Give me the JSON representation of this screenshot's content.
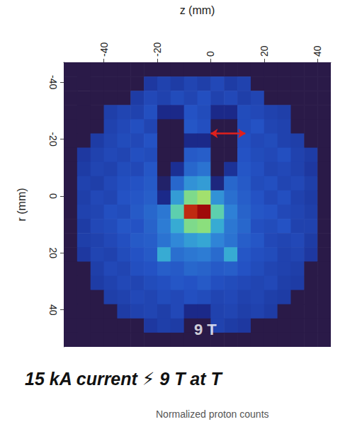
{
  "chart_data": {
    "type": "heatmap",
    "title": "15 kA current ⚡ 9 T at T",
    "colorbar_label": "Normalized proton counts",
    "x_label": "z (mm)",
    "y_label": "r (mm)",
    "x": [
      -52.5,
      -47.5,
      -42.5,
      -37.5,
      -32.5,
      -27.5,
      -22.5,
      -17.5,
      -12.5,
      -7.5,
      -2.5,
      2.5,
      7.5,
      12.5,
      17.5,
      22.5,
      27.5,
      32.5,
      37.5,
      42.5
    ],
    "y": [
      -44.5,
      -39.5,
      -34.5,
      -29.5,
      -24.5,
      -19.5,
      -14.5,
      -9.5,
      -4.5,
      0.5,
      5.5,
      10.5,
      15.5,
      20.5,
      25.5,
      30.5,
      35.5,
      40.5,
      45.5,
      50.5
    ],
    "values": [
      [
        0,
        0,
        0,
        0,
        0,
        0,
        0,
        0,
        0,
        0,
        0,
        0,
        0,
        0,
        0,
        0,
        0,
        0,
        0,
        0
      ],
      [
        0,
        0,
        0,
        0,
        0,
        0,
        0.17,
        0.2,
        0.18,
        0.21,
        0.19,
        0.22,
        0.18,
        0.2,
        0,
        0,
        0,
        0,
        0,
        0
      ],
      [
        0,
        0,
        0,
        0,
        0,
        0.18,
        0.22,
        0.2,
        0.23,
        0.21,
        0.24,
        0.2,
        0.22,
        0.19,
        0.21,
        0,
        0,
        0,
        0,
        0
      ],
      [
        0,
        0,
        0,
        0.19,
        0.21,
        0.2,
        0.24,
        0.12,
        0.12,
        0.25,
        0.23,
        0.12,
        0.12,
        0.23,
        0.22,
        0.2,
        0.19,
        0,
        0,
        0
      ],
      [
        0,
        0,
        0,
        0.2,
        0.22,
        0.24,
        0.21,
        0,
        0,
        0.26,
        0.24,
        0,
        0,
        0.23,
        0.25,
        0.21,
        0.2,
        0,
        0,
        0
      ],
      [
        0,
        0,
        0.18,
        0.21,
        0.23,
        0.22,
        0.25,
        0,
        0,
        0.12,
        0.12,
        0,
        0,
        0.24,
        0.22,
        0.23,
        0.2,
        0.19,
        0,
        0
      ],
      [
        0,
        0.17,
        0.2,
        0.22,
        0.21,
        0.24,
        0.23,
        0,
        0,
        0.27,
        0.28,
        0,
        0,
        0.25,
        0.23,
        0.22,
        0.24,
        0.2,
        0.18,
        0
      ],
      [
        0,
        0.18,
        0.21,
        0.2,
        0.23,
        0.22,
        0.26,
        0,
        0.14,
        0.3,
        0.33,
        0,
        0.15,
        0.26,
        0.24,
        0.21,
        0.22,
        0.2,
        0.17,
        0
      ],
      [
        0,
        0.2,
        0.19,
        0.22,
        0.24,
        0.25,
        0.27,
        0.06,
        0.3,
        0.4,
        0.42,
        0.1,
        0.3,
        0.27,
        0.23,
        0.24,
        0.21,
        0.22,
        0.19,
        0
      ],
      [
        0,
        0.19,
        0.22,
        0.21,
        0.25,
        0.26,
        0.28,
        0.12,
        0.42,
        0.6,
        0.65,
        0.4,
        0.32,
        0.28,
        0.25,
        0.22,
        0.24,
        0.2,
        0.18,
        0
      ],
      [
        0,
        0.2,
        0.21,
        0.24,
        0.23,
        0.27,
        0.3,
        0.34,
        0.55,
        0.95,
        1.0,
        0.55,
        0.36,
        0.29,
        0.26,
        0.25,
        0.22,
        0.21,
        0.19,
        0
      ],
      [
        0,
        0.18,
        0.22,
        0.23,
        0.26,
        0.25,
        0.29,
        0.35,
        0.45,
        0.6,
        0.62,
        0.45,
        0.34,
        0.3,
        0.24,
        0.23,
        0.25,
        0.2,
        0.2,
        0
      ],
      [
        0,
        0.19,
        0.2,
        0.22,
        0.24,
        0.27,
        0.28,
        0.33,
        0.38,
        0.42,
        0.44,
        0.37,
        0.33,
        0.28,
        0.26,
        0.22,
        0.21,
        0.22,
        0.18,
        0
      ],
      [
        0,
        0.17,
        0.21,
        0.2,
        0.23,
        0.25,
        0.27,
        0.45,
        0.32,
        0.34,
        0.35,
        0.31,
        0.45,
        0.26,
        0.24,
        0.23,
        0.2,
        0.21,
        0.17,
        0
      ],
      [
        0,
        0,
        0.19,
        0.22,
        0.21,
        0.24,
        0.25,
        0.28,
        0.27,
        0.3,
        0.29,
        0.27,
        0.28,
        0.25,
        0.23,
        0.21,
        0.2,
        0.19,
        0,
        0
      ],
      [
        0,
        0,
        0.18,
        0.2,
        0.22,
        0.21,
        0.23,
        0.24,
        0.26,
        0.25,
        0.27,
        0.24,
        0.23,
        0.22,
        0.21,
        0.22,
        0.19,
        0.18,
        0,
        0
      ],
      [
        0,
        0,
        0,
        0.19,
        0.2,
        0.22,
        0.21,
        0.23,
        0.22,
        0.24,
        0.23,
        0.21,
        0.22,
        0.2,
        0.21,
        0.19,
        0.18,
        0,
        0,
        0
      ],
      [
        0,
        0,
        0,
        0,
        0.18,
        0.2,
        0.21,
        0.19,
        0.22,
        0.12,
        0.12,
        0.2,
        0.21,
        0.19,
        0.2,
        0.18,
        0,
        0,
        0,
        0
      ],
      [
        0,
        0,
        0,
        0,
        0,
        0,
        0.17,
        0.19,
        0.18,
        0,
        0,
        0.2,
        0.18,
        0.17,
        0,
        0,
        0,
        0,
        0,
        0
      ],
      [
        0,
        0,
        0,
        0,
        0,
        0,
        0,
        0,
        0,
        0,
        0,
        0,
        0,
        0,
        0,
        0,
        0,
        0,
        0,
        0
      ]
    ],
    "xlim": [
      -55,
      45
    ],
    "ylim": [
      -47,
      53
    ],
    "xticks": [
      -40,
      -20,
      0,
      20,
      40
    ],
    "yticks": [
      -40,
      -20,
      0,
      20,
      40
    ],
    "color_range": [
      0,
      1
    ],
    "annotations": [
      {
        "text": "9 T",
        "x": -2,
        "y": 47
      }
    ],
    "arrow": {
      "x": [
        0,
        13
      ],
      "y": -22,
      "color": "#e0201c"
    },
    "grid": false
  }
}
